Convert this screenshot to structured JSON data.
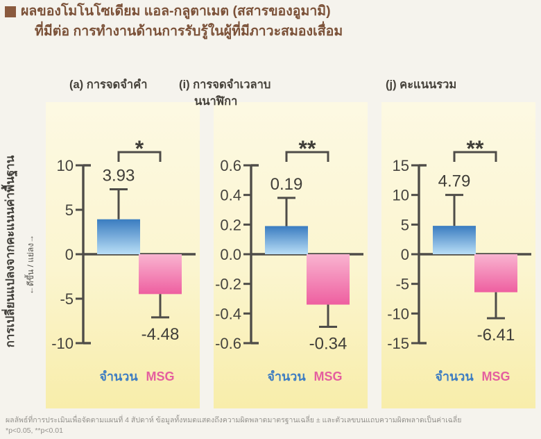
{
  "header": {
    "title_line1": "ผลของโมโนโซเดียม แอล-กลูตาเมต (สสารของอูมามิ)",
    "title_line2": "ที่มีต่อ การทำงานด้านการรับรู้ในผู้ที่มีภาวะสมองเสื่อม"
  },
  "y_axis": {
    "label": "การเปลี่ยนแปลงจากคะแนนค่าพื้นฐาน",
    "direction_label": "←ดีขึ้น / แย่ลง→"
  },
  "footnote": {
    "line1": "ผลลัพธ์ที่การประเมินเพื่อจัดตามแผนที่ 4 สัปดาห์ ข้อมูลทั้งหมดแสดงถึงความผิดพลาดมาตรฐานเฉลี่ย ± และตัวเลขบนแถบความผิดพลาดเป็นค่าเฉลี่ย",
    "line2": "*p<0.05, **p<0.01"
  },
  "colors": {
    "title_brown": "#7b5138",
    "bullet_brown": "#8a5a3e",
    "axis_gray": "#4e4c48",
    "tick_label": "#45433e",
    "value_label": "#403e39",
    "bar_blue_top": "#3a7cc0",
    "bar_blue_bottom": "#b9def6",
    "bar_pink_top": "#f9b4d0",
    "bar_pink_bottom": "#ee5fa0",
    "legend_blue": "#3e7dc2",
    "legend_pink": "#e45f9f",
    "panel_yellow_top": "#fdf9e3",
    "panel_yellow_bottom": "#f8edaa"
  },
  "chart_data": [
    {
      "type": "bar",
      "panel_id": "a",
      "title_lines": [
        "(a) การจดจำคำ"
      ],
      "ylim": [
        -10,
        10
      ],
      "yticks": [
        10,
        5,
        0,
        -5,
        -10
      ],
      "ytick_labels": [
        "10",
        "5",
        "0",
        "-5",
        "-10"
      ],
      "significance": "*",
      "series": [
        {
          "name": "จำนวน",
          "value": 3.93,
          "value_label": "3.93",
          "whisker_end": 7.3,
          "color": "blue"
        },
        {
          "name": "MSG",
          "value": -4.48,
          "value_label": "-4.48",
          "whisker_end": -7.1,
          "color": "pink"
        }
      ]
    },
    {
      "type": "bar",
      "panel_id": "i",
      "title_lines": [
        "(i) การจดจำเวลาบ",
        "นนาฬิกา"
      ],
      "ylim": [
        -0.6,
        0.6
      ],
      "yticks": [
        0.6,
        0.4,
        0.2,
        0.0,
        -0.2,
        -0.4,
        -0.6
      ],
      "ytick_labels": [
        "0.6",
        "0.4",
        "0.2",
        "0.0",
        "-0.2",
        "-0.4",
        "-0.6"
      ],
      "significance": "**",
      "series": [
        {
          "name": "จำนวน",
          "value": 0.19,
          "value_label": "0.19",
          "whisker_end": 0.38,
          "color": "blue"
        },
        {
          "name": "MSG",
          "value": -0.34,
          "value_label": "-0.34",
          "whisker_end": -0.49,
          "color": "pink"
        }
      ]
    },
    {
      "type": "bar",
      "panel_id": "j",
      "title_lines": [
        "(j) คะแนนรวม"
      ],
      "ylim": [
        -15,
        15
      ],
      "yticks": [
        15,
        10,
        5,
        0,
        -5,
        -10,
        -15
      ],
      "ytick_labels": [
        "15",
        "10",
        "5",
        "0",
        "-5",
        "-10",
        "-15"
      ],
      "significance": "**",
      "series": [
        {
          "name": "จำนวน",
          "value": 4.79,
          "value_label": "4.79",
          "whisker_end": 10.0,
          "color": "blue"
        },
        {
          "name": "MSG",
          "value": -6.41,
          "value_label": "-6.41",
          "whisker_end": -10.8,
          "color": "pink"
        }
      ]
    }
  ]
}
